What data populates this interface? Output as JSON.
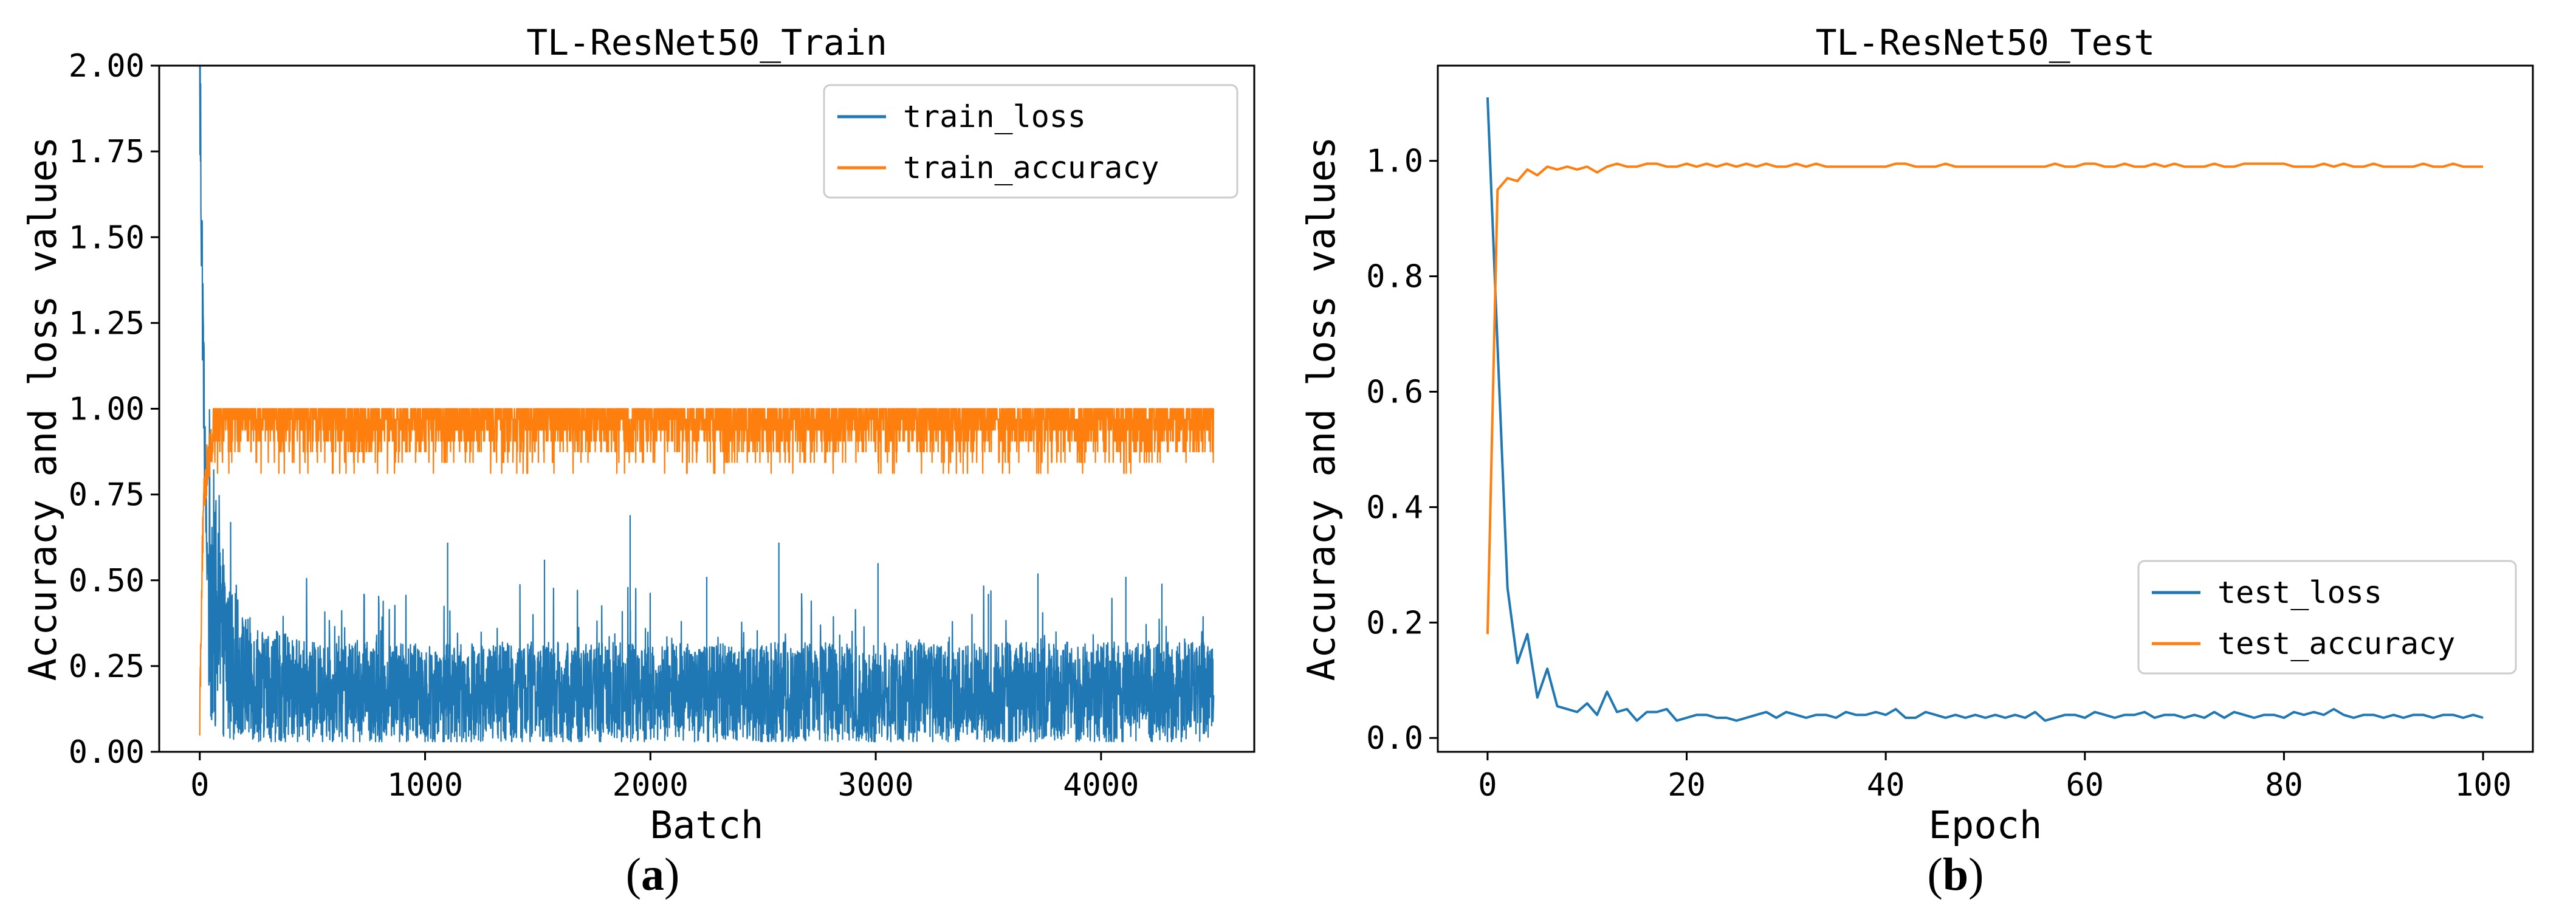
{
  "figure": {
    "panel_labels": [
      "a",
      "b"
    ]
  },
  "chart_data": [
    {
      "type": "line",
      "title": "TL-ResNet50_Train",
      "xlabel": "Batch",
      "ylabel": "Accuracy and loss values",
      "xlim": [
        -180,
        4680
      ],
      "ylim": [
        0.0,
        2.0
      ],
      "xticks": [
        0,
        1000,
        2000,
        3000,
        4000
      ],
      "xtick_labels": [
        "0",
        "1000",
        "2000",
        "3000",
        "4000"
      ],
      "yticks": [
        0.0,
        0.25,
        0.5,
        0.75,
        1.0,
        1.25,
        1.5,
        1.75,
        2.0
      ],
      "ytick_labels": [
        "0.00",
        "0.25",
        "0.50",
        "0.75",
        "1.00",
        "1.25",
        "1.50",
        "1.75",
        "2.00"
      ],
      "grid": false,
      "legend_position": "top-right",
      "series": [
        {
          "name": "train_loss",
          "color": "#1f77b4",
          "x": [
            0,
            5,
            10,
            15,
            20,
            25,
            30,
            40,
            50,
            60,
            70,
            80,
            100,
            120,
            150,
            200,
            300,
            400,
            500,
            700,
            1000,
            1500,
            2000,
            2500,
            3000,
            3500,
            4000,
            4500
          ],
          "y": [
            2.0,
            1.7,
            1.45,
            1.2,
            0.98,
            0.8,
            0.6,
            0.52,
            0.48,
            0.42,
            0.38,
            0.34,
            0.3,
            0.27,
            0.24,
            0.2,
            0.18,
            0.17,
            0.16,
            0.16,
            0.16,
            0.16,
            0.16,
            0.16,
            0.16,
            0.16,
            0.16,
            0.16
          ],
          "noise_band": [
            0.03,
            0.5
          ],
          "spikes": [
            [
              1100,
              0.61
            ],
            [
              1530,
              0.56
            ],
            [
              1910,
              0.69
            ],
            [
              2250,
              0.51
            ],
            [
              2570,
              0.61
            ],
            [
              3010,
              0.55
            ],
            [
              3500,
              0.46
            ],
            [
              3720,
              0.52
            ],
            [
              4110,
              0.51
            ],
            [
              4270,
              0.49
            ]
          ]
        },
        {
          "name": "train_accuracy",
          "color": "#ff7f0e",
          "x": [
            0,
            10,
            20,
            30,
            40,
            50,
            70,
            100,
            150,
            200,
            500,
            1000,
            2000,
            3000,
            4000,
            4500
          ],
          "y": [
            0.12,
            0.55,
            0.75,
            0.82,
            0.86,
            0.88,
            0.9,
            0.91,
            0.92,
            0.93,
            0.93,
            0.93,
            0.93,
            0.93,
            0.93,
            0.93
          ],
          "noise_band": [
            0.8,
            1.0
          ]
        }
      ]
    },
    {
      "type": "line",
      "title": "TL-ResNet50_Test",
      "xlabel": "Epoch",
      "ylabel": "Accuracy and loss values",
      "xlim": [
        -5,
        105
      ],
      "ylim": [
        -0.024,
        1.165
      ],
      "xticks": [
        0,
        20,
        40,
        60,
        80,
        100
      ],
      "xtick_labels": [
        "0",
        "20",
        "40",
        "60",
        "80",
        "100"
      ],
      "yticks": [
        0.0,
        0.2,
        0.4,
        0.6,
        0.8,
        1.0
      ],
      "ytick_labels": [
        "0.0",
        "0.2",
        "0.4",
        "0.6",
        "0.8",
        "1.0"
      ],
      "grid": false,
      "legend_position": "lower-right",
      "series": [
        {
          "name": "test_loss",
          "color": "#1f77b4",
          "y": [
            1.11,
            0.68,
            0.26,
            0.13,
            0.18,
            0.07,
            0.12,
            0.055,
            0.05,
            0.045,
            0.06,
            0.04,
            0.08,
            0.045,
            0.05,
            0.03,
            0.045,
            0.045,
            0.05,
            0.03,
            0.035,
            0.04,
            0.04,
            0.035,
            0.035,
            0.03,
            0.035,
            0.04,
            0.045,
            0.035,
            0.045,
            0.04,
            0.035,
            0.04,
            0.04,
            0.035,
            0.045,
            0.04,
            0.04,
            0.045,
            0.04,
            0.05,
            0.035,
            0.035,
            0.045,
            0.04,
            0.035,
            0.04,
            0.035,
            0.04,
            0.035,
            0.04,
            0.035,
            0.04,
            0.035,
            0.045,
            0.03,
            0.035,
            0.04,
            0.04,
            0.035,
            0.045,
            0.04,
            0.035,
            0.04,
            0.04,
            0.045,
            0.035,
            0.04,
            0.04,
            0.035,
            0.04,
            0.035,
            0.045,
            0.035,
            0.045,
            0.04,
            0.035,
            0.04,
            0.04,
            0.035,
            0.045,
            0.04,
            0.045,
            0.04,
            0.05,
            0.04,
            0.035,
            0.04,
            0.04,
            0.035,
            0.04,
            0.035,
            0.04,
            0.04,
            0.035,
            0.04,
            0.04,
            0.035,
            0.04,
            0.035
          ]
        },
        {
          "name": "test_accuracy",
          "color": "#ff7f0e",
          "y": [
            0.18,
            0.95,
            0.97,
            0.965,
            0.985,
            0.975,
            0.99,
            0.985,
            0.99,
            0.985,
            0.99,
            0.98,
            0.99,
            0.995,
            0.99,
            0.99,
            0.995,
            0.995,
            0.99,
            0.99,
            0.995,
            0.99,
            0.995,
            0.99,
            0.995,
            0.99,
            0.995,
            0.99,
            0.995,
            0.99,
            0.99,
            0.995,
            0.99,
            0.995,
            0.99,
            0.99,
            0.99,
            0.99,
            0.99,
            0.99,
            0.99,
            0.995,
            0.995,
            0.99,
            0.99,
            0.99,
            0.995,
            0.99,
            0.99,
            0.99,
            0.99,
            0.99,
            0.99,
            0.99,
            0.99,
            0.99,
            0.99,
            0.995,
            0.99,
            0.99,
            0.995,
            0.995,
            0.99,
            0.99,
            0.995,
            0.99,
            0.99,
            0.995,
            0.99,
            0.995,
            0.99,
            0.99,
            0.99,
            0.995,
            0.99,
            0.99,
            0.995,
            0.995,
            0.995,
            0.995,
            0.995,
            0.99,
            0.99,
            0.99,
            0.995,
            0.99,
            0.995,
            0.99,
            0.99,
            0.995,
            0.99,
            0.99,
            0.99,
            0.99,
            0.995,
            0.99,
            0.99,
            0.995,
            0.99,
            0.99,
            0.99
          ]
        }
      ]
    }
  ]
}
